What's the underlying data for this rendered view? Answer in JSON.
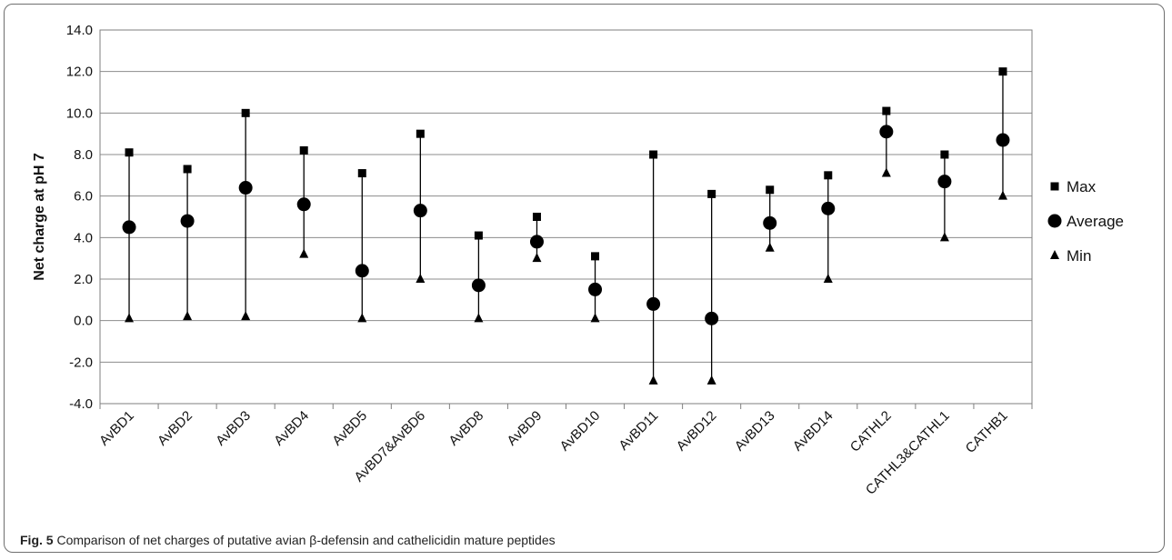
{
  "figure": {
    "caption_label": "Fig. 5",
    "caption_text": " Comparison of net charges of putative avian β-defensin and cathelicidin mature peptides"
  },
  "chart_data": {
    "type": "scatter",
    "style": "high-low-average",
    "title": "",
    "xlabel": "",
    "ylabel": "Net charge at pH 7",
    "ylim": [
      -4.0,
      14.0
    ],
    "ytick_step": 2.0,
    "ytick_labels": [
      "-4.0",
      "-2.0",
      "0.0",
      "2.0",
      "4.0",
      "6.0",
      "8.0",
      "10.0",
      "12.0",
      "14.0"
    ],
    "grid": "horizontal",
    "legend_position": "right",
    "categories": [
      "AvBD1",
      "AvBD2",
      "AvBD3",
      "AvBD4",
      "AvBD5",
      "AvBD7&AvBD6",
      "AvBD8",
      "AvBD9",
      "AvBD10",
      "AvBD11",
      "AvBD12",
      "AvBD13",
      "AvBD14",
      "CATHL2",
      "CATHL3&CATHL1",
      "CATHB1"
    ],
    "series": [
      {
        "name": "Max",
        "marker": "square",
        "values": [
          8.1,
          7.3,
          10.0,
          8.2,
          7.1,
          9.0,
          4.1,
          5.0,
          3.1,
          8.0,
          6.1,
          6.3,
          7.0,
          10.1,
          8.0,
          12.0
        ]
      },
      {
        "name": "Average",
        "marker": "circle",
        "values": [
          4.5,
          4.8,
          6.4,
          5.6,
          2.4,
          5.3,
          1.7,
          3.8,
          1.5,
          0.8,
          0.1,
          4.7,
          5.4,
          9.1,
          6.7,
          8.7
        ]
      },
      {
        "name": "Min",
        "marker": "triangle",
        "values": [
          0.1,
          0.2,
          0.2,
          3.2,
          0.1,
          2.0,
          0.1,
          3.0,
          0.1,
          -2.9,
          -2.9,
          3.5,
          2.0,
          7.1,
          4.0,
          6.0
        ]
      }
    ],
    "colors": {
      "marker": "#000000",
      "grid": "#8c8c8c",
      "axis": "#7f7f7f"
    }
  }
}
